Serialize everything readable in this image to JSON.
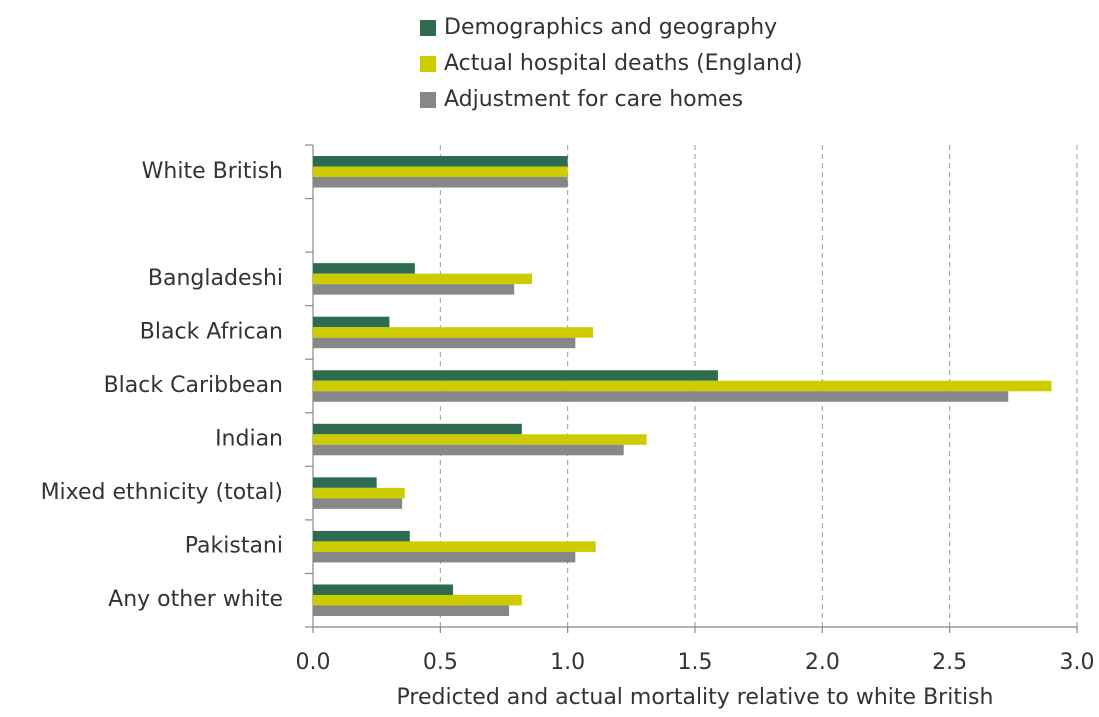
{
  "chart_data": {
    "type": "bar",
    "orientation": "horizontal",
    "categories": [
      "White British",
      null,
      "Bangladeshi",
      "Black African",
      "Black Caribbean",
      "Indian",
      "Mixed ethnicity (total)",
      "Pakistani",
      "Any other white"
    ],
    "series": [
      {
        "name": "Demographics and geography",
        "color": "#2e6b50",
        "values": [
          1.0,
          null,
          0.4,
          0.3,
          1.59,
          0.82,
          0.25,
          0.38,
          0.55
        ]
      },
      {
        "name": "Actual hospital deaths (England)",
        "color": "#cccc00",
        "values": [
          1.0,
          null,
          0.86,
          1.1,
          2.9,
          1.31,
          0.36,
          1.11,
          0.82
        ]
      },
      {
        "name": "Adjustment for care homes",
        "color": "#878787",
        "values": [
          1.0,
          null,
          0.79,
          1.03,
          2.73,
          1.22,
          0.35,
          1.03,
          0.77
        ]
      }
    ],
    "x_label": "Predicted and actual mortality relative to white British",
    "xlim": [
      0,
      3
    ],
    "xticks": [
      {
        "value": 0,
        "label": "0.0"
      },
      0.5,
      {
        "value": 1,
        "label": "1.0"
      },
      1.5,
      {
        "value": 2,
        "label": "2.0"
      },
      2.5,
      {
        "value": 3,
        "label": "3.0"
      }
    ],
    "grid": true,
    "legend": "top"
  }
}
